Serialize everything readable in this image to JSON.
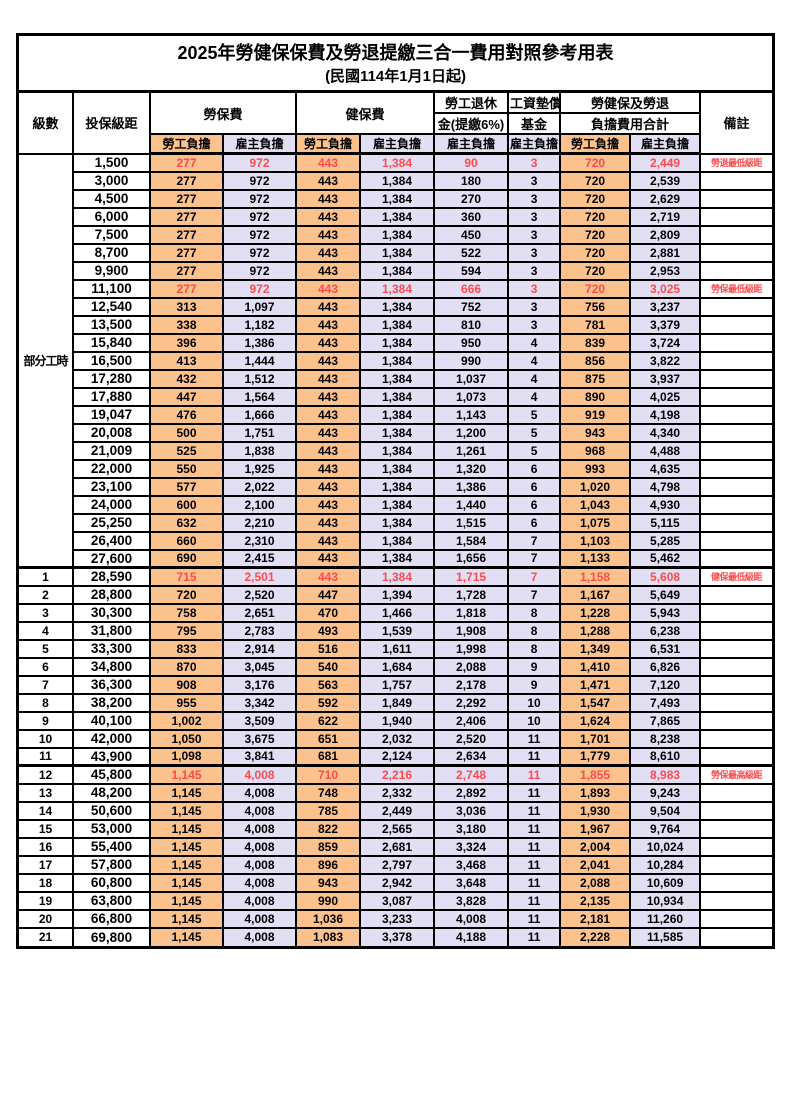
{
  "title": "2025年勞健保保費及勞退提繳三合一費用對照參考用表",
  "subtitle": "(民國114年1月1日起)",
  "header": {
    "level": "級數",
    "bracket": "投保級距",
    "labor_insurance": "勞保費",
    "health_insurance": "健保費",
    "pension_line1": "勞工退休",
    "pension_line2": "金(提繳6%)",
    "wage_fund_line1": "工資墊償",
    "wage_fund_line2": "基金",
    "total_line1": "勞健保及勞退",
    "total_line2": "負擔費用合計",
    "remark": "備註",
    "employee_share": "勞工負擔",
    "employer_share": "雇主負擔"
  },
  "colors": {
    "employee_bg": "#fbc28e",
    "employer_bg": "#e2def3",
    "highlight_text": "#ff4a4d",
    "border": "#000000"
  },
  "part_time_label": "部分工時",
  "rows": [
    {
      "level": "",
      "bracket": "1,500",
      "v": [
        "277",
        "972",
        "443",
        "1,384",
        "90",
        "3",
        "720",
        "2,449"
      ],
      "note": "勞退最低級距",
      "hl": true,
      "thick": false
    },
    {
      "level": "",
      "bracket": "3,000",
      "v": [
        "277",
        "972",
        "443",
        "1,384",
        "180",
        "3",
        "720",
        "2,539"
      ],
      "note": "",
      "hl": false,
      "thick": false
    },
    {
      "level": "",
      "bracket": "4,500",
      "v": [
        "277",
        "972",
        "443",
        "1,384",
        "270",
        "3",
        "720",
        "2,629"
      ],
      "note": "",
      "hl": false,
      "thick": false
    },
    {
      "level": "",
      "bracket": "6,000",
      "v": [
        "277",
        "972",
        "443",
        "1,384",
        "360",
        "3",
        "720",
        "2,719"
      ],
      "note": "",
      "hl": false,
      "thick": false
    },
    {
      "level": "",
      "bracket": "7,500",
      "v": [
        "277",
        "972",
        "443",
        "1,384",
        "450",
        "3",
        "720",
        "2,809"
      ],
      "note": "",
      "hl": false,
      "thick": false
    },
    {
      "level": "",
      "bracket": "8,700",
      "v": [
        "277",
        "972",
        "443",
        "1,384",
        "522",
        "3",
        "720",
        "2,881"
      ],
      "note": "",
      "hl": false,
      "thick": false
    },
    {
      "level": "",
      "bracket": "9,900",
      "v": [
        "277",
        "972",
        "443",
        "1,384",
        "594",
        "3",
        "720",
        "2,953"
      ],
      "note": "",
      "hl": false,
      "thick": false
    },
    {
      "level": "",
      "bracket": "11,100",
      "v": [
        "277",
        "972",
        "443",
        "1,384",
        "666",
        "3",
        "720",
        "3,025"
      ],
      "note": "勞保最低級距",
      "hl": true,
      "thick": false
    },
    {
      "level": "",
      "bracket": "12,540",
      "v": [
        "313",
        "1,097",
        "443",
        "1,384",
        "752",
        "3",
        "756",
        "3,237"
      ],
      "note": "",
      "hl": false,
      "thick": false
    },
    {
      "level": "",
      "bracket": "13,500",
      "v": [
        "338",
        "1,182",
        "443",
        "1,384",
        "810",
        "3",
        "781",
        "3,379"
      ],
      "note": "",
      "hl": false,
      "thick": false
    },
    {
      "level": "",
      "bracket": "15,840",
      "v": [
        "396",
        "1,386",
        "443",
        "1,384",
        "950",
        "4",
        "839",
        "3,724"
      ],
      "note": "",
      "hl": false,
      "thick": false
    },
    {
      "level": "",
      "bracket": "16,500",
      "v": [
        "413",
        "1,444",
        "443",
        "1,384",
        "990",
        "4",
        "856",
        "3,822"
      ],
      "note": "",
      "hl": false,
      "thick": false
    },
    {
      "level": "",
      "bracket": "17,280",
      "v": [
        "432",
        "1,512",
        "443",
        "1,384",
        "1,037",
        "4",
        "875",
        "3,937"
      ],
      "note": "",
      "hl": false,
      "thick": false
    },
    {
      "level": "",
      "bracket": "17,880",
      "v": [
        "447",
        "1,564",
        "443",
        "1,384",
        "1,073",
        "4",
        "890",
        "4,025"
      ],
      "note": "",
      "hl": false,
      "thick": false
    },
    {
      "level": "",
      "bracket": "19,047",
      "v": [
        "476",
        "1,666",
        "443",
        "1,384",
        "1,143",
        "5",
        "919",
        "4,198"
      ],
      "note": "",
      "hl": false,
      "thick": false
    },
    {
      "level": "",
      "bracket": "20,008",
      "v": [
        "500",
        "1,751",
        "443",
        "1,384",
        "1,200",
        "5",
        "943",
        "4,340"
      ],
      "note": "",
      "hl": false,
      "thick": false
    },
    {
      "level": "",
      "bracket": "21,009",
      "v": [
        "525",
        "1,838",
        "443",
        "1,384",
        "1,261",
        "5",
        "968",
        "4,488"
      ],
      "note": "",
      "hl": false,
      "thick": false
    },
    {
      "level": "",
      "bracket": "22,000",
      "v": [
        "550",
        "1,925",
        "443",
        "1,384",
        "1,320",
        "6",
        "993",
        "4,635"
      ],
      "note": "",
      "hl": false,
      "thick": false
    },
    {
      "level": "",
      "bracket": "23,100",
      "v": [
        "577",
        "2,022",
        "443",
        "1,384",
        "1,386",
        "6",
        "1,020",
        "4,798"
      ],
      "note": "",
      "hl": false,
      "thick": false
    },
    {
      "level": "",
      "bracket": "24,000",
      "v": [
        "600",
        "2,100",
        "443",
        "1,384",
        "1,440",
        "6",
        "1,043",
        "4,930"
      ],
      "note": "",
      "hl": false,
      "thick": false
    },
    {
      "level": "",
      "bracket": "25,250",
      "v": [
        "632",
        "2,210",
        "443",
        "1,384",
        "1,515",
        "6",
        "1,075",
        "5,115"
      ],
      "note": "",
      "hl": false,
      "thick": false
    },
    {
      "level": "",
      "bracket": "26,400",
      "v": [
        "660",
        "2,310",
        "443",
        "1,384",
        "1,584",
        "7",
        "1,103",
        "5,285"
      ],
      "note": "",
      "hl": false,
      "thick": false
    },
    {
      "level": "",
      "bracket": "27,600",
      "v": [
        "690",
        "2,415",
        "443",
        "1,384",
        "1,656",
        "7",
        "1,133",
        "5,462"
      ],
      "note": "",
      "hl": false,
      "thick": false
    },
    {
      "level": "1",
      "bracket": "28,590",
      "v": [
        "715",
        "2,501",
        "443",
        "1,384",
        "1,715",
        "7",
        "1,158",
        "5,608"
      ],
      "note": "健保最低級距",
      "hl": true,
      "thick": true
    },
    {
      "level": "2",
      "bracket": "28,800",
      "v": [
        "720",
        "2,520",
        "447",
        "1,394",
        "1,728",
        "7",
        "1,167",
        "5,649"
      ],
      "note": "",
      "hl": false,
      "thick": false
    },
    {
      "level": "3",
      "bracket": "30,300",
      "v": [
        "758",
        "2,651",
        "470",
        "1,466",
        "1,818",
        "8",
        "1,228",
        "5,943"
      ],
      "note": "",
      "hl": false,
      "thick": false
    },
    {
      "level": "4",
      "bracket": "31,800",
      "v": [
        "795",
        "2,783",
        "493",
        "1,539",
        "1,908",
        "8",
        "1,288",
        "6,238"
      ],
      "note": "",
      "hl": false,
      "thick": false
    },
    {
      "level": "5",
      "bracket": "33,300",
      "v": [
        "833",
        "2,914",
        "516",
        "1,611",
        "1,998",
        "8",
        "1,349",
        "6,531"
      ],
      "note": "",
      "hl": false,
      "thick": false
    },
    {
      "level": "6",
      "bracket": "34,800",
      "v": [
        "870",
        "3,045",
        "540",
        "1,684",
        "2,088",
        "9",
        "1,410",
        "6,826"
      ],
      "note": "",
      "hl": false,
      "thick": false
    },
    {
      "level": "7",
      "bracket": "36,300",
      "v": [
        "908",
        "3,176",
        "563",
        "1,757",
        "2,178",
        "9",
        "1,471",
        "7,120"
      ],
      "note": "",
      "hl": false,
      "thick": false
    },
    {
      "level": "8",
      "bracket": "38,200",
      "v": [
        "955",
        "3,342",
        "592",
        "1,849",
        "2,292",
        "10",
        "1,547",
        "7,493"
      ],
      "note": "",
      "hl": false,
      "thick": false
    },
    {
      "level": "9",
      "bracket": "40,100",
      "v": [
        "1,002",
        "3,509",
        "622",
        "1,940",
        "2,406",
        "10",
        "1,624",
        "7,865"
      ],
      "note": "",
      "hl": false,
      "thick": false
    },
    {
      "level": "10",
      "bracket": "42,000",
      "v": [
        "1,050",
        "3,675",
        "651",
        "2,032",
        "2,520",
        "11",
        "1,701",
        "8,238"
      ],
      "note": "",
      "hl": false,
      "thick": false
    },
    {
      "level": "11",
      "bracket": "43,900",
      "v": [
        "1,098",
        "3,841",
        "681",
        "2,124",
        "2,634",
        "11",
        "1,779",
        "8,610"
      ],
      "note": "",
      "hl": false,
      "thick": false
    },
    {
      "level": "12",
      "bracket": "45,800",
      "v": [
        "1,145",
        "4,008",
        "710",
        "2,216",
        "2,748",
        "11",
        "1,855",
        "8,983"
      ],
      "note": "勞保最高級距",
      "hl": true,
      "thick": true
    },
    {
      "level": "13",
      "bracket": "48,200",
      "v": [
        "1,145",
        "4,008",
        "748",
        "2,332",
        "2,892",
        "11",
        "1,893",
        "9,243"
      ],
      "note": "",
      "hl": false,
      "thick": false
    },
    {
      "level": "14",
      "bracket": "50,600",
      "v": [
        "1,145",
        "4,008",
        "785",
        "2,449",
        "3,036",
        "11",
        "1,930",
        "9,504"
      ],
      "note": "",
      "hl": false,
      "thick": false
    },
    {
      "level": "15",
      "bracket": "53,000",
      "v": [
        "1,145",
        "4,008",
        "822",
        "2,565",
        "3,180",
        "11",
        "1,967",
        "9,764"
      ],
      "note": "",
      "hl": false,
      "thick": false
    },
    {
      "level": "16",
      "bracket": "55,400",
      "v": [
        "1,145",
        "4,008",
        "859",
        "2,681",
        "3,324",
        "11",
        "2,004",
        "10,024"
      ],
      "note": "",
      "hl": false,
      "thick": false
    },
    {
      "level": "17",
      "bracket": "57,800",
      "v": [
        "1,145",
        "4,008",
        "896",
        "2,797",
        "3,468",
        "11",
        "2,041",
        "10,284"
      ],
      "note": "",
      "hl": false,
      "thick": false
    },
    {
      "level": "18",
      "bracket": "60,800",
      "v": [
        "1,145",
        "4,008",
        "943",
        "2,942",
        "3,648",
        "11",
        "2,088",
        "10,609"
      ],
      "note": "",
      "hl": false,
      "thick": false
    },
    {
      "level": "19",
      "bracket": "63,800",
      "v": [
        "1,145",
        "4,008",
        "990",
        "3,087",
        "3,828",
        "11",
        "2,135",
        "10,934"
      ],
      "note": "",
      "hl": false,
      "thick": false
    },
    {
      "level": "20",
      "bracket": "66,800",
      "v": [
        "1,145",
        "4,008",
        "1,036",
        "3,233",
        "4,008",
        "11",
        "2,181",
        "11,260"
      ],
      "note": "",
      "hl": false,
      "thick": false
    },
    {
      "level": "21",
      "bracket": "69,800",
      "v": [
        "1,145",
        "4,008",
        "1,083",
        "3,378",
        "4,188",
        "11",
        "2,228",
        "11,585"
      ],
      "note": "",
      "hl": false,
      "thick": false
    }
  ]
}
